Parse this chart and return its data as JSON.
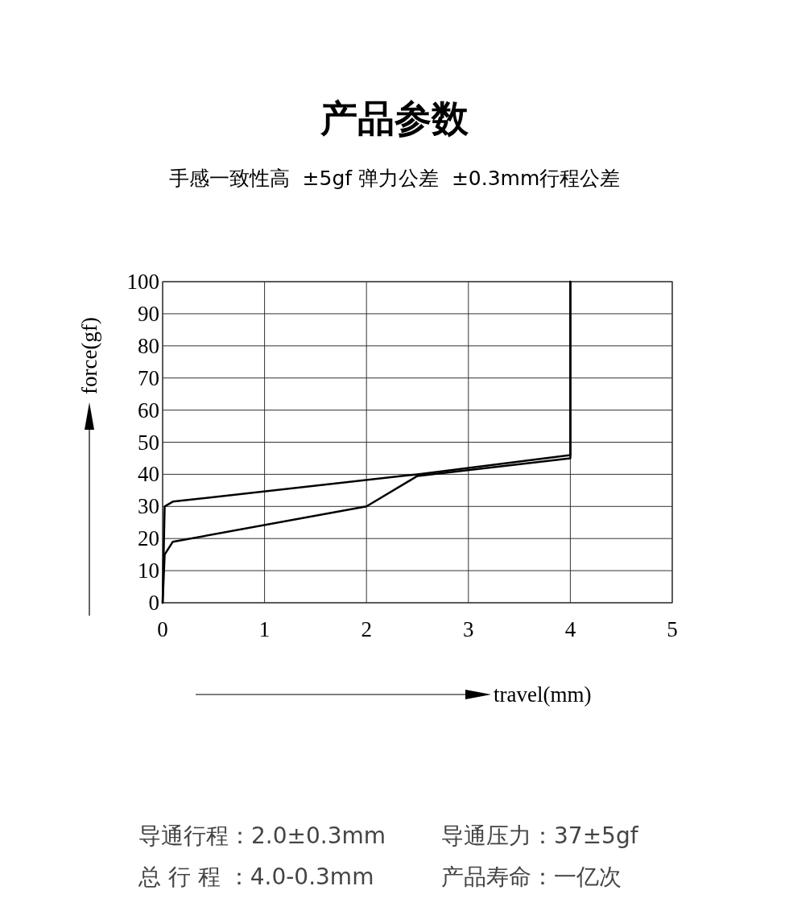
{
  "chart_data": {
    "type": "line",
    "title": "产品参数",
    "subtitle": "手感一致性高  ±5gf 弹力公差  ±0.3mm行程公差",
    "xlabel": "travel(mm)",
    "ylabel": "force(gf)",
    "series": [
      {
        "color": "#000000",
        "x": [
          0,
          0.02,
          0.1,
          2,
          2.5,
          4,
          4,
          4
        ],
        "values": [
          0,
          15,
          19,
          30,
          39.5,
          45,
          45.5,
          100
        ]
      },
      {
        "color": "#000000",
        "x": [
          0,
          0.02,
          0.1,
          2.5,
          4,
          4
        ],
        "values": [
          0,
          30,
          31.5,
          40,
          46,
          100
        ]
      }
    ],
    "xlim": [
      0,
      5
    ],
    "xticks": [
      0,
      1,
      2,
      3,
      4,
      5
    ],
    "ylim": [
      0,
      100
    ],
    "yticks": [
      0,
      10,
      20,
      30,
      40,
      50,
      60,
      70,
      80,
      90,
      100
    ],
    "grid": true,
    "marker": "none",
    "line_style": "solid",
    "annotations": [
      "导通行程：2.0±0.3mm",
      "导通压力：37±5gf",
      "总 行 程 ：4.0-0.3mm",
      "产品寿命：一亿次"
    ]
  }
}
